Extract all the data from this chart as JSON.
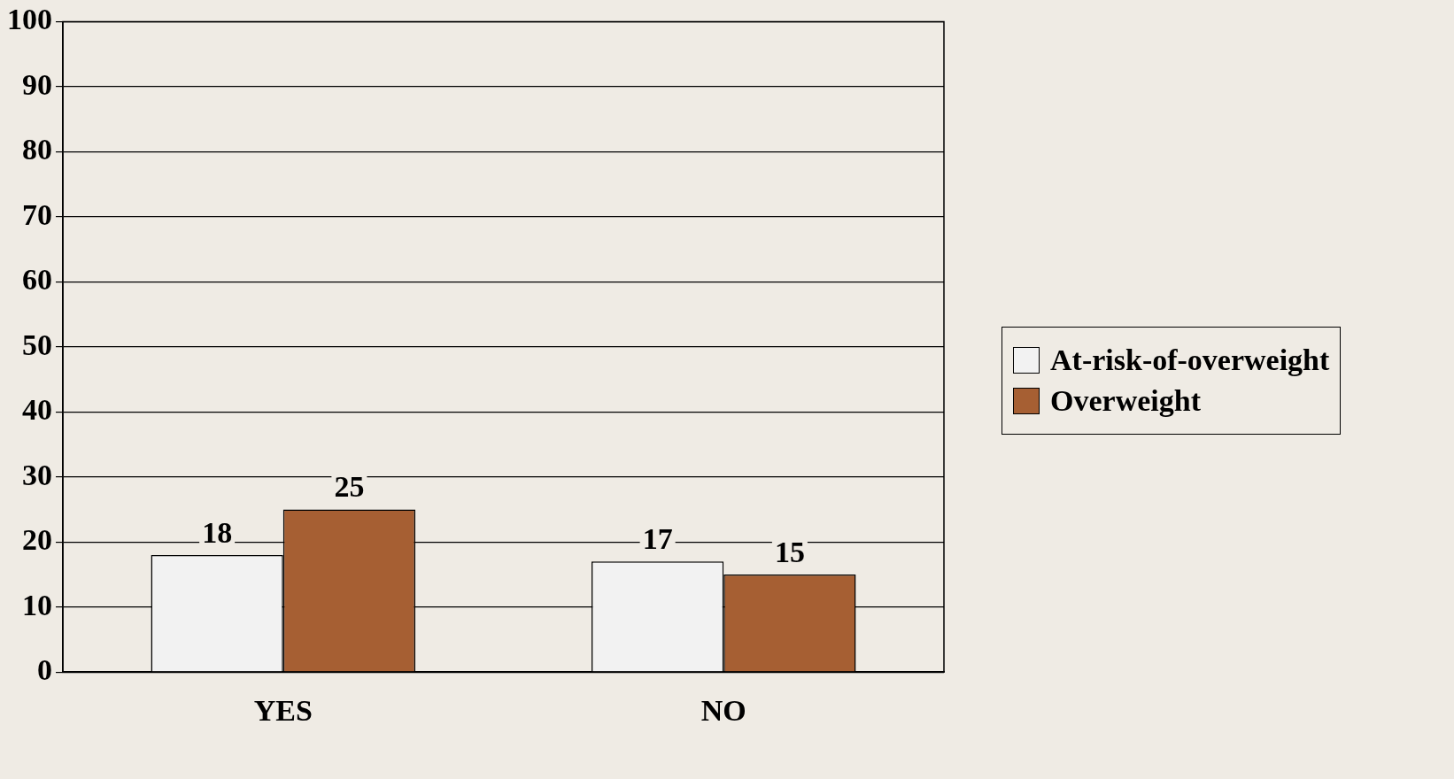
{
  "chart_data": {
    "type": "bar",
    "categories": [
      "YES",
      "NO"
    ],
    "series": [
      {
        "name": "At-risk-of-overweight",
        "color": "#f2f2f2",
        "values": [
          18,
          17
        ]
      },
      {
        "name": "Overweight",
        "color": "#a65f33",
        "values": [
          25,
          15
        ]
      }
    ],
    "ylim": [
      0,
      100
    ],
    "yticks": [
      0,
      10,
      20,
      30,
      40,
      50,
      60,
      70,
      80,
      90,
      100
    ],
    "grid": "y",
    "legend": "right",
    "data_labels": true
  }
}
